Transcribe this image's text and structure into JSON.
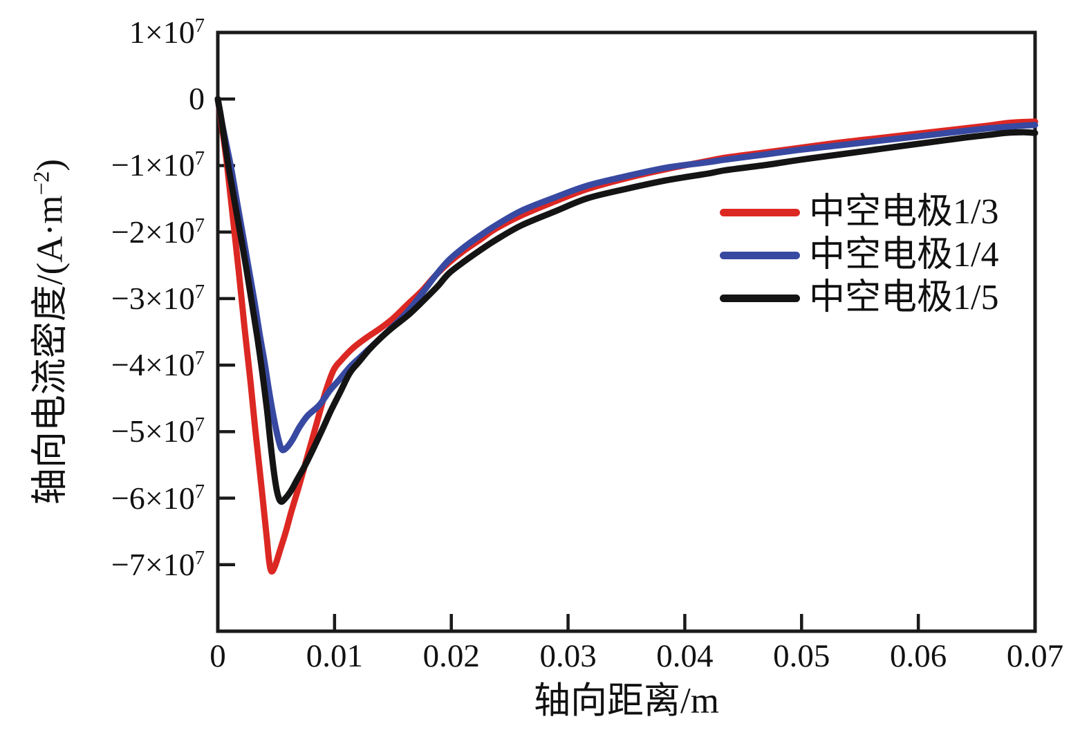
{
  "chart_data": {
    "type": "line",
    "title": "",
    "xlabel": "轴向距离/m",
    "ylabel": {
      "main": "轴向电流密度/(A·m",
      "sup": "−2",
      "close": ")"
    },
    "xlim": [
      0,
      0.07
    ],
    "ylim_1e7": [
      -8,
      1
    ],
    "y_unit_text": "×10⁷",
    "grid": false,
    "legend_position": "upper right",
    "frame_color": "#1a1a1a",
    "x_tick_labels": [
      "0",
      "0.01",
      "0.02",
      "0.03",
      "0.04",
      "0.05",
      "0.06",
      "0.07"
    ],
    "x_tick_values": [
      0,
      0.01,
      0.02,
      0.03,
      0.04,
      0.05,
      0.06,
      0.07
    ],
    "x_tick_marks": [
      0.01,
      0.02,
      0.03,
      0.04,
      0.05,
      0.06
    ],
    "y_ticks": [
      {
        "v": 1,
        "base": "1×10",
        "exp": "7"
      },
      {
        "v": 0,
        "base": "0",
        "exp": ""
      },
      {
        "v": -1,
        "base": "−1×10",
        "exp": "7"
      },
      {
        "v": -2,
        "base": "−2×10",
        "exp": "7"
      },
      {
        "v": -3,
        "base": "−3×10",
        "exp": "7"
      },
      {
        "v": -4,
        "base": "−4×10",
        "exp": "7"
      },
      {
        "v": -5,
        "base": "−5×10",
        "exp": "7"
      },
      {
        "v": -6,
        "base": "−6×10",
        "exp": "7"
      },
      {
        "v": -7,
        "base": "−7×10",
        "exp": "7"
      }
    ],
    "y_tick_marks": [
      0,
      -1,
      -2,
      -3,
      -4,
      -5,
      -6,
      -7
    ],
    "series": [
      {
        "label": "中空电极1/3",
        "color": "#dc2823",
        "points": [
          [
            0,
            0
          ],
          [
            0.0003,
            -0.35
          ],
          [
            0.0008,
            -1.0
          ],
          [
            0.0013,
            -1.8
          ],
          [
            0.0018,
            -2.6
          ],
          [
            0.0023,
            -3.45
          ],
          [
            0.0028,
            -4.25
          ],
          [
            0.0032,
            -4.95
          ],
          [
            0.0036,
            -5.6
          ],
          [
            0.0039,
            -6.1
          ],
          [
            0.0042,
            -6.6
          ],
          [
            0.0044,
            -6.95
          ],
          [
            0.0046,
            -7.1
          ],
          [
            0.0049,
            -7.02
          ],
          [
            0.0053,
            -6.8
          ],
          [
            0.0058,
            -6.52
          ],
          [
            0.0063,
            -6.2
          ],
          [
            0.0069,
            -5.85
          ],
          [
            0.0076,
            -5.42
          ],
          [
            0.0084,
            -4.92
          ],
          [
            0.0092,
            -4.42
          ],
          [
            0.0099,
            -4.08
          ],
          [
            0.0106,
            -3.92
          ],
          [
            0.0116,
            -3.74
          ],
          [
            0.0128,
            -3.58
          ],
          [
            0.0139,
            -3.45
          ],
          [
            0.015,
            -3.3
          ],
          [
            0.0163,
            -3.08
          ],
          [
            0.0175,
            -2.88
          ],
          [
            0.0186,
            -2.66
          ],
          [
            0.0198,
            -2.46
          ],
          [
            0.021,
            -2.29
          ],
          [
            0.0225,
            -2.11
          ],
          [
            0.0238,
            -1.95
          ],
          [
            0.026,
            -1.75
          ],
          [
            0.029,
            -1.53
          ],
          [
            0.0317,
            -1.35
          ],
          [
            0.035,
            -1.19
          ],
          [
            0.0385,
            -1.05
          ],
          [
            0.042,
            -0.93
          ],
          [
            0.0435,
            -0.88
          ],
          [
            0.047,
            -0.8
          ],
          [
            0.05,
            -0.73
          ],
          [
            0.053,
            -0.66
          ],
          [
            0.0555,
            -0.61
          ],
          [
            0.058,
            -0.56
          ],
          [
            0.061,
            -0.5
          ],
          [
            0.064,
            -0.44
          ],
          [
            0.066,
            -0.4
          ],
          [
            0.0672,
            -0.37
          ],
          [
            0.0684,
            -0.35
          ],
          [
            0.07,
            -0.34
          ]
        ]
      },
      {
        "label": "中空电极1/4",
        "color": "#3849a1",
        "points": [
          [
            0,
            0
          ],
          [
            0.0004,
            -0.4
          ],
          [
            0.0011,
            -1.0
          ],
          [
            0.0016,
            -1.5
          ],
          [
            0.0021,
            -2.0
          ],
          [
            0.0026,
            -2.5
          ],
          [
            0.0031,
            -3.0
          ],
          [
            0.0036,
            -3.55
          ],
          [
            0.004,
            -3.95
          ],
          [
            0.0044,
            -4.4
          ],
          [
            0.0048,
            -4.8
          ],
          [
            0.0052,
            -5.12
          ],
          [
            0.0055,
            -5.27
          ],
          [
            0.0059,
            -5.24
          ],
          [
            0.0064,
            -5.12
          ],
          [
            0.007,
            -4.93
          ],
          [
            0.0077,
            -4.76
          ],
          [
            0.0087,
            -4.6
          ],
          [
            0.0096,
            -4.38
          ],
          [
            0.0104,
            -4.22
          ],
          [
            0.0113,
            -4.03
          ],
          [
            0.0122,
            -3.88
          ],
          [
            0.0133,
            -3.7
          ],
          [
            0.0145,
            -3.5
          ],
          [
            0.0158,
            -3.28
          ],
          [
            0.0168,
            -3.08
          ],
          [
            0.0178,
            -2.85
          ],
          [
            0.0188,
            -2.62
          ],
          [
            0.0198,
            -2.42
          ],
          [
            0.021,
            -2.24
          ],
          [
            0.0225,
            -2.05
          ],
          [
            0.0238,
            -1.9
          ],
          [
            0.026,
            -1.68
          ],
          [
            0.029,
            -1.47
          ],
          [
            0.0317,
            -1.3
          ],
          [
            0.035,
            -1.16
          ],
          [
            0.0385,
            -1.03
          ],
          [
            0.042,
            -0.95
          ],
          [
            0.0435,
            -0.91
          ],
          [
            0.047,
            -0.83
          ],
          [
            0.05,
            -0.76
          ],
          [
            0.053,
            -0.7
          ],
          [
            0.0555,
            -0.65
          ],
          [
            0.058,
            -0.6
          ],
          [
            0.061,
            -0.54
          ],
          [
            0.064,
            -0.48
          ],
          [
            0.066,
            -0.44
          ],
          [
            0.0675,
            -0.42
          ],
          [
            0.069,
            -0.4
          ],
          [
            0.07,
            -0.39
          ]
        ]
      },
      {
        "label": "中空电极1/5",
        "color": "#141414",
        "points": [
          [
            0,
            0
          ],
          [
            0.0003,
            -0.3
          ],
          [
            0.0009,
            -1.0
          ],
          [
            0.0014,
            -1.5
          ],
          [
            0.0019,
            -2.0
          ],
          [
            0.0024,
            -2.5
          ],
          [
            0.0029,
            -3.05
          ],
          [
            0.0034,
            -3.6
          ],
          [
            0.0038,
            -4.1
          ],
          [
            0.0042,
            -4.65
          ],
          [
            0.0045,
            -5.15
          ],
          [
            0.0048,
            -5.6
          ],
          [
            0.0051,
            -5.92
          ],
          [
            0.0054,
            -6.05
          ],
          [
            0.0058,
            -6.0
          ],
          [
            0.0063,
            -5.88
          ],
          [
            0.0068,
            -5.72
          ],
          [
            0.0075,
            -5.5
          ],
          [
            0.0082,
            -5.25
          ],
          [
            0.009,
            -4.95
          ],
          [
            0.0097,
            -4.68
          ],
          [
            0.0105,
            -4.4
          ],
          [
            0.0113,
            -4.12
          ],
          [
            0.0121,
            -3.95
          ],
          [
            0.0129,
            -3.78
          ],
          [
            0.0139,
            -3.6
          ],
          [
            0.015,
            -3.43
          ],
          [
            0.0163,
            -3.25
          ],
          [
            0.0175,
            -3.05
          ],
          [
            0.0188,
            -2.82
          ],
          [
            0.0198,
            -2.62
          ],
          [
            0.0212,
            -2.43
          ],
          [
            0.0225,
            -2.27
          ],
          [
            0.0238,
            -2.12
          ],
          [
            0.026,
            -1.9
          ],
          [
            0.029,
            -1.68
          ],
          [
            0.0317,
            -1.49
          ],
          [
            0.035,
            -1.35
          ],
          [
            0.0385,
            -1.22
          ],
          [
            0.042,
            -1.12
          ],
          [
            0.0435,
            -1.07
          ],
          [
            0.047,
            -0.99
          ],
          [
            0.05,
            -0.91
          ],
          [
            0.053,
            -0.84
          ],
          [
            0.0555,
            -0.78
          ],
          [
            0.058,
            -0.72
          ],
          [
            0.061,
            -0.65
          ],
          [
            0.064,
            -0.58
          ],
          [
            0.066,
            -0.54
          ],
          [
            0.0675,
            -0.51
          ],
          [
            0.069,
            -0.5
          ],
          [
            0.07,
            -0.51
          ]
        ]
      }
    ]
  }
}
